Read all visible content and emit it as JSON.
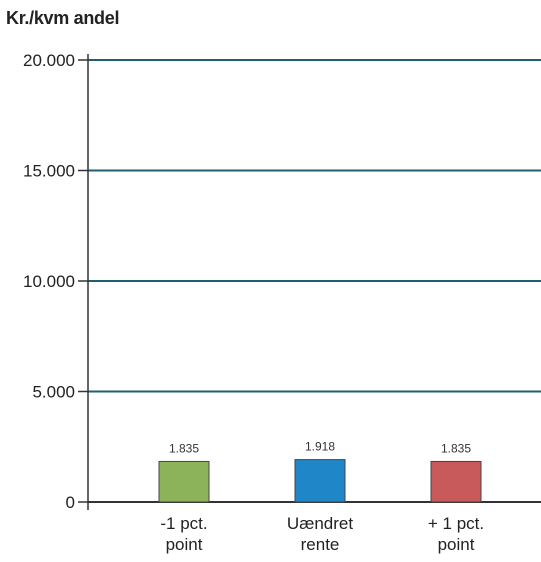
{
  "chart_data": {
    "type": "bar",
    "title": "",
    "xlabel": "",
    "ylabel": "Kr./kvm andel",
    "categories": [
      [
        "-1 pct.",
        "point"
      ],
      [
        "Uændret",
        "rente"
      ],
      [
        "+ 1 pct.",
        "point"
      ]
    ],
    "values": [
      1835,
      1918,
      1835
    ],
    "data_labels": [
      "1.835",
      "1.918",
      "1.835"
    ],
    "bar_colors": [
      "#8db35a",
      "#1f86c8",
      "#c95a5c"
    ],
    "ylim": [
      0,
      20000
    ],
    "y_ticks": [
      0,
      5000,
      10000,
      15000,
      20000
    ],
    "y_tick_labels": [
      "0",
      "5.000",
      "10.000",
      "15.000",
      "20.000"
    ],
    "grid": true,
    "grid_color": "#1e5f70",
    "legend": "none"
  }
}
